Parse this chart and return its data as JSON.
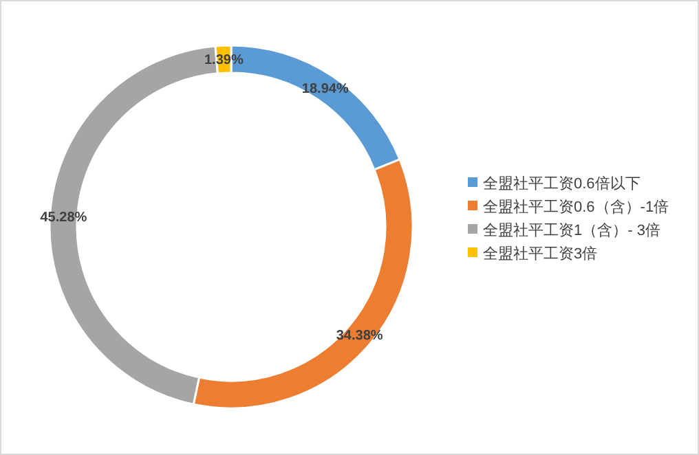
{
  "chart_data": {
    "type": "donut",
    "categories": [
      "全盟社平工资0.6倍以下",
      "全盟社平工资0.6（含）-1倍",
      "全盟社平工资1（含）- 3倍",
      "全盟社平工资3倍"
    ],
    "values": [
      18.94,
      34.38,
      45.28,
      1.39
    ],
    "colors": [
      "#5b9bd5",
      "#ed7d31",
      "#a5a5a5",
      "#ffc000"
    ],
    "value_labels": [
      "18.94%",
      "34.38%",
      "45.28%",
      "1.39%"
    ],
    "legend": "right"
  }
}
